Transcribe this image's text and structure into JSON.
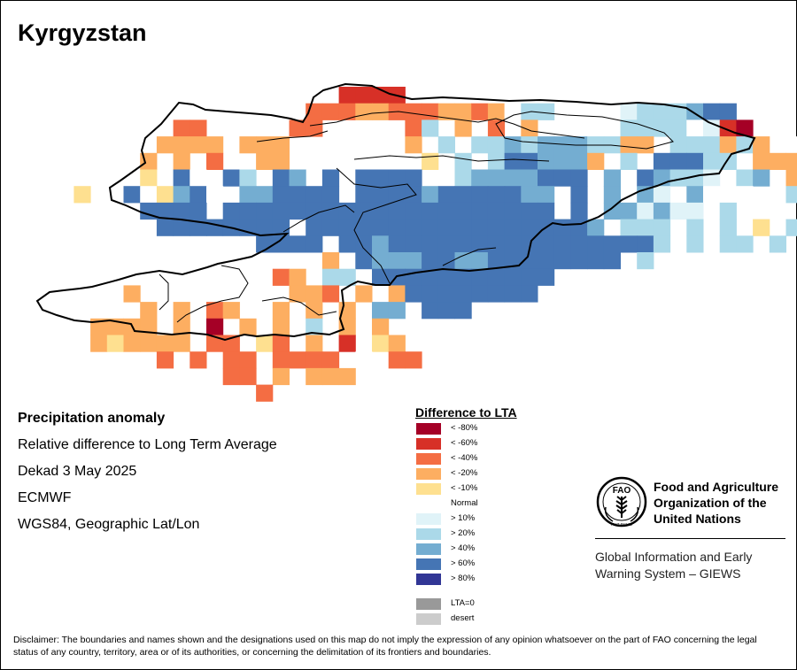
{
  "map": {
    "title": "Kyrgyzstan"
  },
  "info": {
    "line1": "Precipitation anomaly",
    "line2": "Relative difference to Long Term Average",
    "line3": "Dekad 3 May 2025",
    "line4": "ECMWF",
    "line5": "WGS84, Geographic Lat/Lon"
  },
  "legend": {
    "title": "Difference to LTA",
    "items": [
      {
        "label": "< -80%",
        "color": "#a50026"
      },
      {
        "label": "< -60%",
        "color": "#d73027"
      },
      {
        "label": "< -40%",
        "color": "#f46d43"
      },
      {
        "label": "< -20%",
        "color": "#fdae61"
      },
      {
        "label": "< -10%",
        "color": "#fee090"
      },
      {
        "label": "Normal",
        "color": "#ffffff"
      },
      {
        "label": "> 10%",
        "color": "#e0f3f8"
      },
      {
        "label": "> 20%",
        "color": "#abd9e9"
      },
      {
        "label": "> 40%",
        "color": "#74add1"
      },
      {
        "label": "> 60%",
        "color": "#4575b4"
      },
      {
        "label": "> 80%",
        "color": "#313695"
      },
      {
        "label": "LTA=0",
        "color": "#999999"
      },
      {
        "label": "desert",
        "color": "#cccccc"
      }
    ]
  },
  "fao": {
    "logo_text": "FAO",
    "logo_motto": "FIAT PANIS",
    "name_line1": "Food and Agriculture",
    "name_line2": "Organization of the",
    "name_line3": "United Nations",
    "giews_line1": "Global Information and Early",
    "giews_line2": "Warning System – GIEWS"
  },
  "disclaimer": "Disclaimer: The boundaries and names shown and the designations used on this map do not imply the expression of any opinion whatsoever on the part of FAO concerning the legal status of any country, territory, area or of its authorities, or concerning the delimitation of its frontiers and boundaries."
}
